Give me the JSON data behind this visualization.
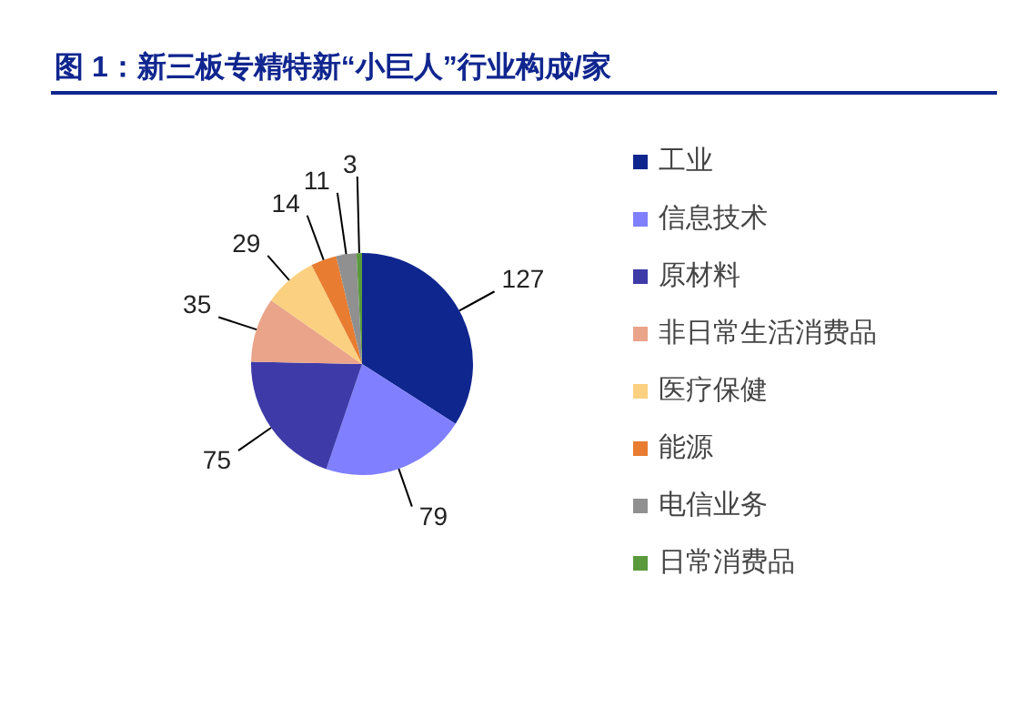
{
  "chart_data": {
    "type": "pie",
    "title": "图 1：新三板专精特新“小巨人”行业构成/家",
    "categories": [
      "工业",
      "信息技术",
      "原材料",
      "非日常生活消费品",
      "医疗保健",
      "能源",
      "电信业务",
      "日常消费品"
    ],
    "values": [
      127,
      79,
      75,
      35,
      29,
      14,
      11,
      3
    ],
    "colors": [
      "#10268f",
      "#7f7fff",
      "#3e3aa8",
      "#eaa48a",
      "#fbd080",
      "#e87c30",
      "#909090",
      "#5a9a3c"
    ],
    "data_labels": true,
    "legend": "right"
  }
}
